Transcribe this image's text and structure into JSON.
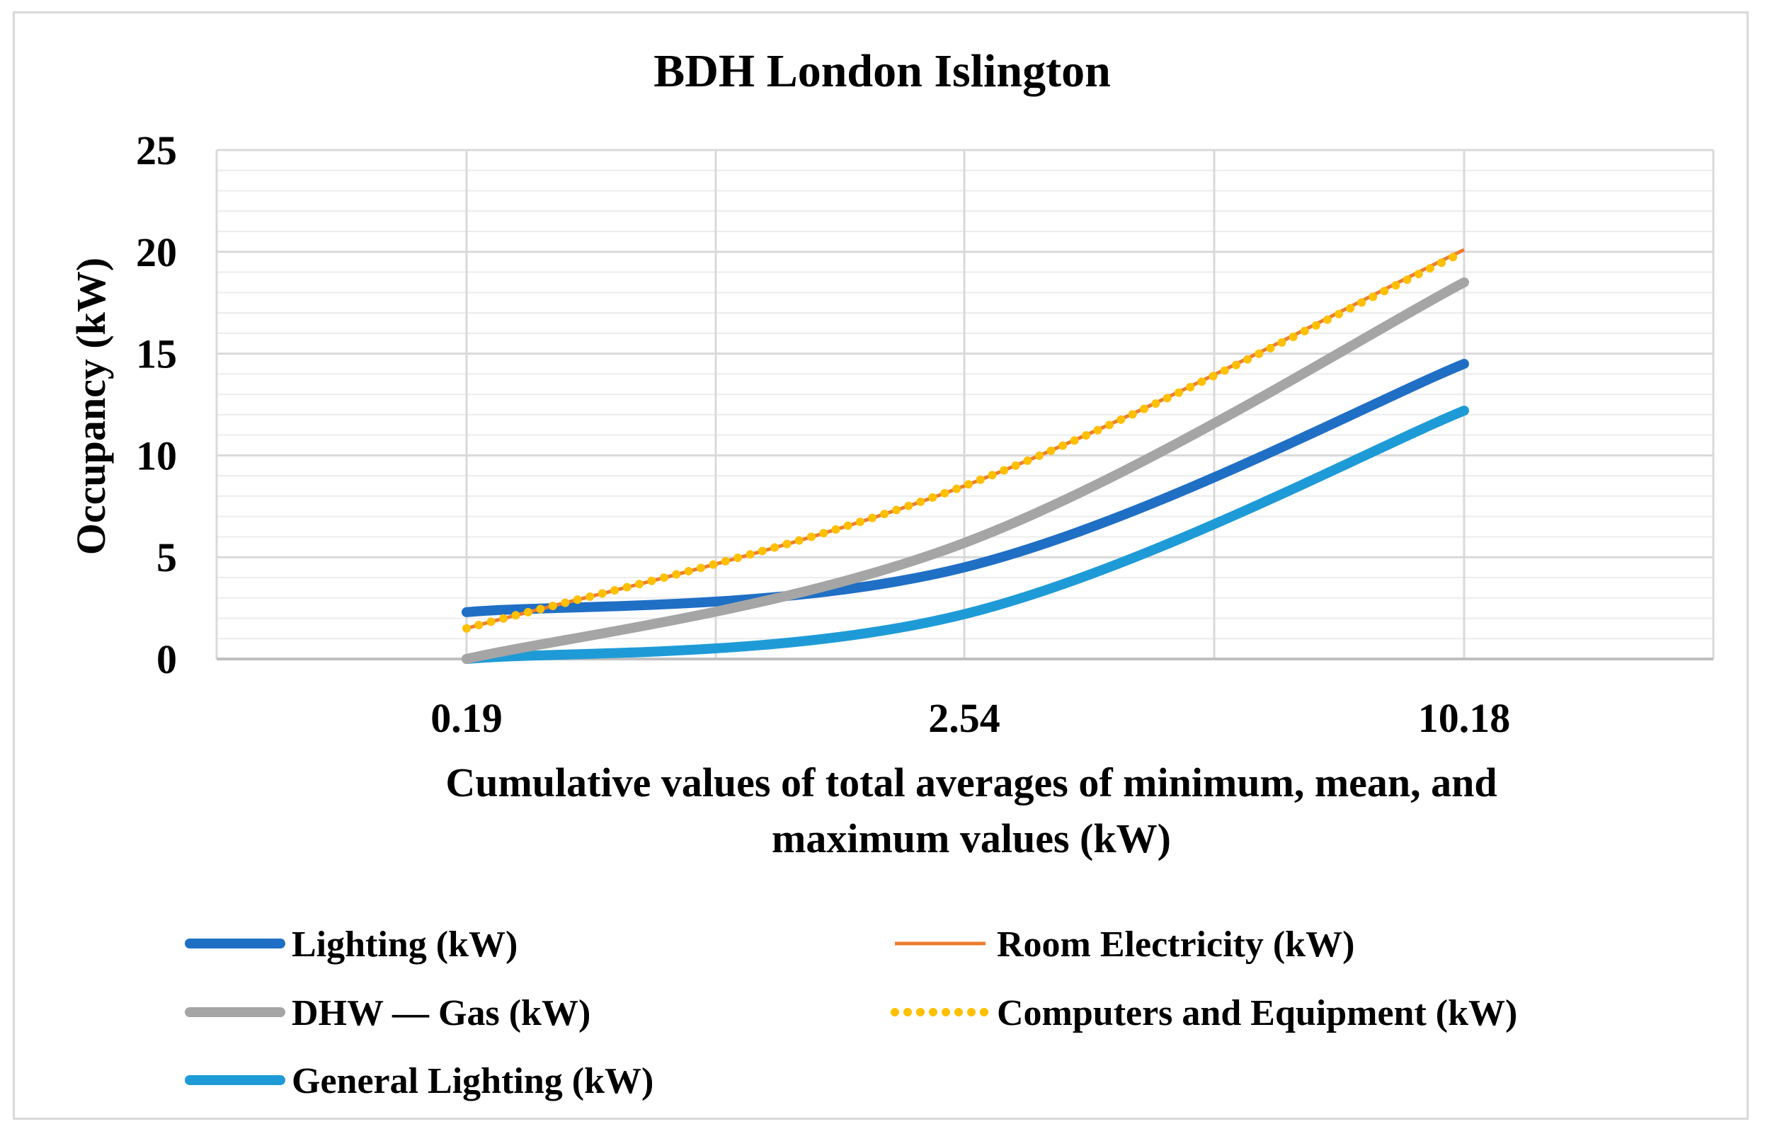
{
  "chart_data": {
    "type": "line",
    "title": "BDH London Islington",
    "xlabel_lines": [
      "Cumulative values of total averages of minimum, mean, and",
      "maximum values (kW)"
    ],
    "ylabel": "Occupancy (kW)",
    "categories": [
      "0.19",
      "2.54",
      "10.18"
    ],
    "ylim": [
      0,
      25
    ],
    "y_ticks": [
      "0",
      "5",
      "10",
      "15",
      "20",
      "25"
    ],
    "grid": true,
    "legend_position": "bottom",
    "series": [
      {
        "name": "Lighting (kW)",
        "values": [
          2.3,
          4.5,
          14.5
        ],
        "color": "#1f6fc5",
        "style": "thick"
      },
      {
        "name": "Room Electricity (kW)",
        "values": [
          1.5,
          8.5,
          20.1
        ],
        "color": "#ed7d31",
        "style": "thin"
      },
      {
        "name": "DHW — Gas (kW)",
        "values": [
          0.0,
          5.7,
          18.5
        ],
        "color": "#a5a5a5",
        "style": "thick"
      },
      {
        "name": "Computers and Equipment (kW)",
        "values": [
          1.5,
          8.5,
          20.0
        ],
        "color": "#ffc000",
        "style": "dotted"
      },
      {
        "name": "General Lighting (kW)",
        "values": [
          0.0,
          2.2,
          12.2
        ],
        "color": "#1e9bd7",
        "style": "thick"
      }
    ]
  }
}
